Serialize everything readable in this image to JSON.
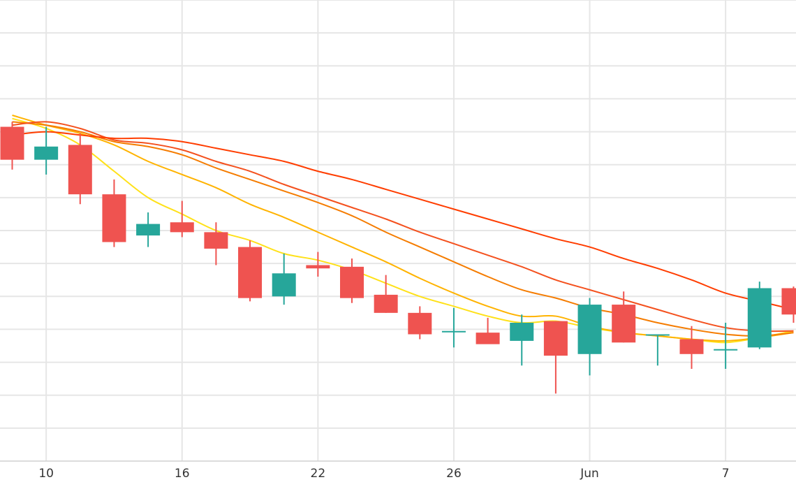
{
  "chart_data": {
    "type": "candlestick",
    "x_tick_labels": [
      "10",
      "16",
      "22",
      "26",
      "Jun",
      "7"
    ],
    "ylim": [
      0,
      14
    ],
    "grid": true,
    "colors": {
      "up": "#26a69a",
      "down": "#ef5350",
      "grid": "#e6e6e6",
      "axis": "#d0d0d0"
    },
    "candles": [
      {
        "x": 0,
        "open": 10.15,
        "high": 10.3,
        "low": 8.85,
        "close": 9.15
      },
      {
        "x": 1,
        "open": 9.15,
        "high": 10.15,
        "low": 8.7,
        "close": 9.55
      },
      {
        "x": 2,
        "open": 9.6,
        "high": 9.95,
        "low": 7.8,
        "close": 8.1
      },
      {
        "x": 3,
        "open": 8.1,
        "high": 8.55,
        "low": 6.5,
        "close": 6.65
      },
      {
        "x": 4,
        "open": 6.85,
        "high": 7.55,
        "low": 6.5,
        "close": 7.2
      },
      {
        "x": 5,
        "open": 7.25,
        "high": 7.9,
        "low": 6.8,
        "close": 6.95
      },
      {
        "x": 6,
        "open": 6.95,
        "high": 7.25,
        "low": 5.95,
        "close": 6.45
      },
      {
        "x": 7,
        "open": 6.5,
        "high": 6.7,
        "low": 4.85,
        "close": 4.95
      },
      {
        "x": 8,
        "open": 5.0,
        "high": 6.3,
        "low": 4.75,
        "close": 5.7
      },
      {
        "x": 9,
        "open": 5.95,
        "high": 6.35,
        "low": 5.6,
        "close": 5.85
      },
      {
        "x": 10,
        "open": 5.9,
        "high": 6.15,
        "low": 4.8,
        "close": 4.95
      },
      {
        "x": 11,
        "open": 5.05,
        "high": 5.65,
        "low": 4.5,
        "close": 4.5
      },
      {
        "x": 12,
        "open": 4.5,
        "high": 4.7,
        "low": 3.7,
        "close": 3.85
      },
      {
        "x": 13,
        "open": 3.95,
        "high": 4.65,
        "low": 3.45,
        "close": 3.95
      },
      {
        "x": 14,
        "open": 3.9,
        "high": 4.35,
        "low": 3.6,
        "close": 3.55
      },
      {
        "x": 15,
        "open": 3.65,
        "high": 4.45,
        "low": 2.9,
        "close": 4.2
      },
      {
        "x": 16,
        "open": 4.25,
        "high": 4.25,
        "low": 2.05,
        "close": 3.2
      },
      {
        "x": 17,
        "open": 3.25,
        "high": 4.95,
        "low": 2.6,
        "close": 4.75
      },
      {
        "x": 18,
        "open": 4.75,
        "high": 5.15,
        "low": 3.6,
        "close": 3.6
      },
      {
        "x": 19,
        "open": 3.85,
        "high": 3.85,
        "low": 2.9,
        "close": 3.85
      },
      {
        "x": 20,
        "open": 3.7,
        "high": 4.1,
        "low": 2.8,
        "close": 3.25
      },
      {
        "x": 21,
        "open": 3.4,
        "high": 4.2,
        "low": 2.8,
        "close": 3.4
      },
      {
        "x": 22,
        "open": 3.45,
        "high": 5.45,
        "low": 3.4,
        "close": 5.25
      },
      {
        "x": 23,
        "open": 5.25,
        "high": 5.3,
        "low": 4.2,
        "close": 4.45
      }
    ],
    "moving_averages": [
      {
        "color": "#ffe119",
        "values": [
          10.4,
          10.1,
          9.6,
          8.8,
          8.0,
          7.5,
          7.0,
          6.7,
          6.3,
          6.1,
          5.8,
          5.4,
          5.0,
          4.7,
          4.4,
          4.2,
          4.25,
          4.05,
          3.9,
          3.8,
          3.7,
          3.6,
          3.75,
          3.95
        ]
      },
      {
        "color": "#ffb300",
        "values": [
          10.5,
          10.2,
          9.95,
          9.6,
          9.1,
          8.7,
          8.3,
          7.8,
          7.4,
          6.95,
          6.5,
          6.05,
          5.55,
          5.1,
          4.7,
          4.4,
          4.4,
          4.1,
          3.9,
          3.8,
          3.7,
          3.65,
          3.75,
          3.9
        ]
      },
      {
        "color": "#f57c00",
        "values": [
          10.3,
          10.2,
          10.0,
          9.7,
          9.55,
          9.3,
          8.9,
          8.55,
          8.2,
          7.85,
          7.45,
          6.95,
          6.5,
          6.05,
          5.6,
          5.2,
          4.95,
          4.65,
          4.45,
          4.2,
          4.0,
          3.85,
          3.8,
          3.9
        ]
      },
      {
        "color": "#f4511e",
        "values": [
          10.2,
          10.3,
          10.1,
          9.75,
          9.65,
          9.45,
          9.1,
          8.8,
          8.4,
          8.05,
          7.7,
          7.35,
          6.95,
          6.6,
          6.25,
          5.9,
          5.5,
          5.2,
          4.9,
          4.6,
          4.3,
          4.05,
          3.95,
          3.95
        ]
      },
      {
        "color": "#ff3d00",
        "values": [
          9.9,
          10.0,
          9.9,
          9.8,
          9.8,
          9.7,
          9.5,
          9.3,
          9.1,
          8.8,
          8.55,
          8.25,
          7.95,
          7.65,
          7.35,
          7.05,
          6.75,
          6.5,
          6.15,
          5.85,
          5.5,
          5.1,
          4.85,
          4.6
        ]
      }
    ]
  }
}
